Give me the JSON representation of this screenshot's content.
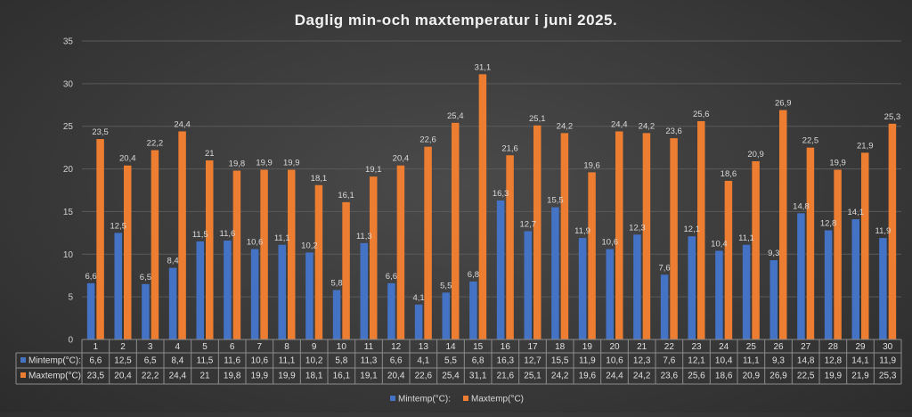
{
  "chart_data": {
    "type": "bar",
    "title": "Daglig min-och maxtemperatur i juni 2025.",
    "xlabel": "",
    "ylabel": "",
    "ylim": [
      0,
      35
    ],
    "yticks": [
      0,
      5,
      10,
      15,
      20,
      25,
      30,
      35
    ],
    "grid": true,
    "legend_position": "bottom",
    "data_table": true,
    "categories": [
      "1",
      "2",
      "3",
      "4",
      "5",
      "6",
      "7",
      "8",
      "9",
      "10",
      "11",
      "12",
      "13",
      "14",
      "15",
      "16",
      "17",
      "18",
      "19",
      "20",
      "21",
      "22",
      "23",
      "24",
      "25",
      "26",
      "27",
      "28",
      "29",
      "30"
    ],
    "series": [
      {
        "name": "Mintemp(°C):",
        "color": "#4472C4",
        "values": [
          6.6,
          12.5,
          6.5,
          8.4,
          11.5,
          11.6,
          10.6,
          11.1,
          10.2,
          5.8,
          11.3,
          6.6,
          4.1,
          5.5,
          6.8,
          16.3,
          12.7,
          15.5,
          11.9,
          10.6,
          12.3,
          7.6,
          12.1,
          10.4,
          11.1,
          9.3,
          14.8,
          12.8,
          14.1,
          11.9
        ],
        "labels": [
          "6,6",
          "12,5",
          "6,5",
          "8,4",
          "11,5",
          "11,6",
          "10,6",
          "11,1",
          "10,2",
          "5,8",
          "11,3",
          "6,6",
          "4,1",
          "5,5",
          "6,8",
          "16,3",
          "12,7",
          "15,5",
          "11,9",
          "10,6",
          "12,3",
          "7,6",
          "12,1",
          "10,4",
          "11,1",
          "9,3",
          "14,8",
          "12,8",
          "14,1",
          "11,9"
        ]
      },
      {
        "name": "Maxtemp(°C)",
        "color": "#ED7D31",
        "values": [
          23.5,
          20.4,
          22.2,
          24.4,
          21,
          19.8,
          19.9,
          19.9,
          18.1,
          16.1,
          19.1,
          20.4,
          22.6,
          25.4,
          31.1,
          21.6,
          25.1,
          24.2,
          19.6,
          24.4,
          24.2,
          23.6,
          25.6,
          18.6,
          20.9,
          26.9,
          22.5,
          19.9,
          21.9,
          25.3
        ],
        "labels": [
          "23,5",
          "20,4",
          "22,2",
          "24,4",
          "21",
          "19,8",
          "19,9",
          "19,9",
          "18,1",
          "16,1",
          "19,1",
          "20,4",
          "22,6",
          "25,4",
          "31,1",
          "21,6",
          "25,1",
          "24,2",
          "19,6",
          "24,4",
          "24,2",
          "23,6",
          "25,6",
          "18,6",
          "20,9",
          "26,9",
          "22,5",
          "19,9",
          "21,9",
          "25,3"
        ]
      }
    ]
  }
}
